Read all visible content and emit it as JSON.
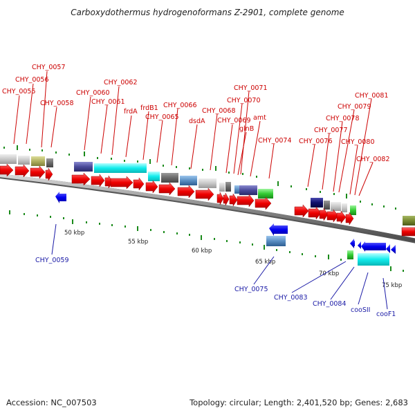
{
  "title": "Carboxydothermus hydrogenoformans Z-2901, complete genome",
  "footer": {
    "accession": "Accession: NC_007503",
    "summary": "Topology: circular; Length: 2,401,520 bp; Genes: 2,683"
  },
  "kbp_labels": [
    "50 kbp",
    "55 kbp",
    "60 kbp",
    "65 kbp",
    "70 kbp",
    "75 kbp"
  ],
  "forward_labels": [
    "CHY_0055",
    "CHY_0056",
    "CHY_0057",
    "CHY_0058",
    "CHY_0060",
    "CHY_0061",
    "CHY_0062",
    "frdA",
    "frdB1",
    "CHY_0065",
    "CHY_0066",
    "dsdA",
    "CHY_0068",
    "CHY_0069",
    "CHY_0070",
    "CHY_0071",
    "glnB",
    "amt",
    "CHY_0074",
    "CHY_0076",
    "CHY_0077",
    "CHY_0078",
    "CHY_0079",
    "CHY_0080",
    "CHY_0081",
    "CHY_0082"
  ],
  "reverse_labels": [
    "CHY_0059",
    "CHY_0075",
    "CHY_0083",
    "CHY_0084",
    "cooSII",
    "cooF1"
  ],
  "colors": {
    "backbone": "#8a8a8a",
    "forward_arrow": "#ff0000",
    "reverse_arrow": "#0000ee",
    "forward_label": "#cc0000",
    "reverse_label": "#1a1aa6",
    "tick": "#1a8a1a"
  }
}
